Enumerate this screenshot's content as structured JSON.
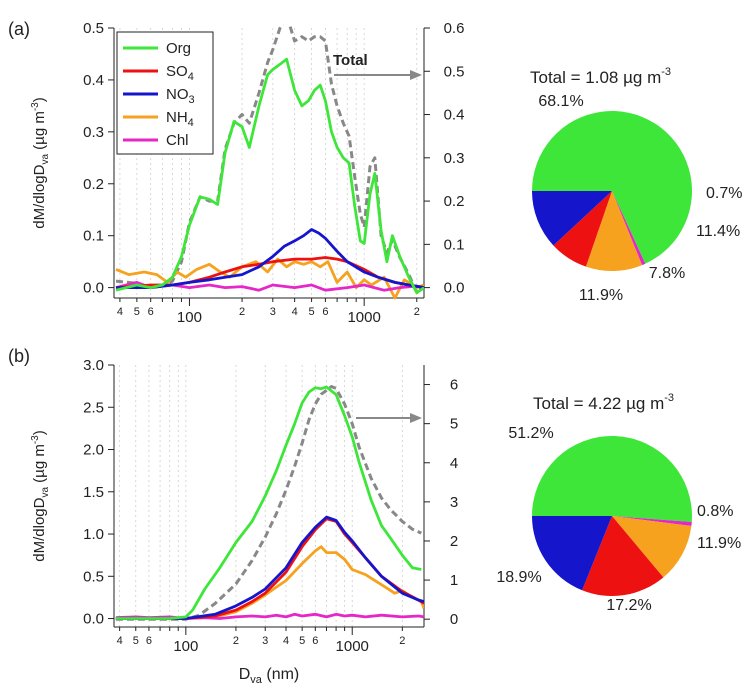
{
  "colors": {
    "Org": "#3ee63a",
    "SO4": "#ee1111",
    "NO3": "#1515cc",
    "NH4": "#f6a21e",
    "Chl": "#e526c8",
    "Total": "#888888",
    "axis": "#222222",
    "grid": "#cfcfcf"
  },
  "chart_data": [
    {
      "panel_label": "(a)",
      "type": "line",
      "xlabel_base": "D",
      "xlabel_sub": "va",
      "xlabel_unit": " (nm)",
      "ylabel": "dM/dlogDva (µg m-3)",
      "x_scale": "log",
      "xlim": [
        37,
        2200
      ],
      "ylim_left": [
        -0.02,
        0.5
      ],
      "ylim_right": [
        -0.024,
        0.6
      ],
      "x_major_ticks": [
        {
          "value": 100,
          "label": "100"
        },
        {
          "value": 1000,
          "label": "1000"
        }
      ],
      "x_minor_ticks": [
        {
          "value": 40,
          "label": "4"
        },
        {
          "value": 50,
          "label": "5"
        },
        {
          "value": 60,
          "label": "6"
        },
        {
          "value": 70,
          "label": ""
        },
        {
          "value": 80,
          "label": ""
        },
        {
          "value": 90,
          "label": ""
        },
        {
          "value": 200,
          "label": "2"
        },
        {
          "value": 300,
          "label": "3"
        },
        {
          "value": 400,
          "label": "4"
        },
        {
          "value": 500,
          "label": "5"
        },
        {
          "value": 600,
          "label": "6"
        },
        {
          "value": 700,
          "label": ""
        },
        {
          "value": 800,
          "label": ""
        },
        {
          "value": 900,
          "label": ""
        },
        {
          "value": 2000,
          "label": "2"
        }
      ],
      "y_left_ticks": [
        {
          "value": 0,
          "label": "0.0"
        },
        {
          "value": 0.1,
          "label": "0.1"
        },
        {
          "value": 0.2,
          "label": "0.2"
        },
        {
          "value": 0.3,
          "label": "0.3"
        },
        {
          "value": 0.4,
          "label": "0.4"
        },
        {
          "value": 0.5,
          "label": "0.5"
        }
      ],
      "y_right_ticks": [
        {
          "value": 0,
          "label": "0.0"
        },
        {
          "value": 0.1,
          "label": "0.1"
        },
        {
          "value": 0.2,
          "label": "0.2"
        },
        {
          "value": 0.3,
          "label": "0.3"
        },
        {
          "value": 0.4,
          "label": "0.4"
        },
        {
          "value": 0.5,
          "label": "0.5"
        },
        {
          "value": 0.6,
          "label": "0.6"
        }
      ],
      "legend": [
        "Org",
        "SO4",
        "NO3",
        "NH4",
        "Chl"
      ],
      "total_annotation": "Total",
      "series": [
        {
          "name": "Org",
          "axis": "left",
          "x": [
            38,
            50,
            60,
            70,
            80,
            90,
            100,
            115,
            130,
            145,
            160,
            180,
            200,
            220,
            250,
            280,
            300,
            330,
            360,
            400,
            440,
            480,
            520,
            560,
            600,
            650,
            700,
            760,
            820,
            880,
            950,
            1000,
            1080,
            1150,
            1250,
            1350,
            1450,
            1600,
            1800,
            2000,
            2200
          ],
          "y": [
            -0.005,
            0.005,
            0.0,
            0.005,
            0.02,
            0.06,
            0.12,
            0.175,
            0.17,
            0.16,
            0.26,
            0.32,
            0.31,
            0.27,
            0.35,
            0.41,
            0.42,
            0.43,
            0.44,
            0.38,
            0.35,
            0.36,
            0.38,
            0.39,
            0.36,
            0.3,
            0.27,
            0.25,
            0.24,
            0.16,
            0.09,
            0.085,
            0.18,
            0.22,
            0.11,
            0.05,
            0.1,
            0.06,
            0.02,
            -0.01,
            0.0
          ]
        },
        {
          "name": "SO4",
          "axis": "left",
          "x": [
            38,
            60,
            80,
            100,
            130,
            160,
            200,
            250,
            300,
            400,
            500,
            600,
            700,
            800,
            1000,
            1200,
            1500,
            1800,
            2200
          ],
          "y": [
            0.0,
            0.005,
            0.005,
            0.01,
            0.02,
            0.03,
            0.04,
            0.045,
            0.05,
            0.055,
            0.055,
            0.058,
            0.055,
            0.05,
            0.035,
            0.02,
            0.01,
            0.005,
            0.0
          ]
        },
        {
          "name": "NO3",
          "axis": "left",
          "x": [
            38,
            60,
            80,
            100,
            130,
            160,
            200,
            250,
            300,
            350,
            400,
            450,
            500,
            550,
            600,
            700,
            800,
            1000,
            1200,
            1500,
            1800,
            2200
          ],
          "y": [
            0.0,
            0.0,
            0.005,
            0.01,
            0.015,
            0.02,
            0.025,
            0.04,
            0.06,
            0.08,
            0.09,
            0.1,
            0.112,
            0.105,
            0.095,
            0.07,
            0.05,
            0.03,
            0.02,
            0.01,
            0.005,
            0.0
          ]
        },
        {
          "name": "NH4",
          "axis": "left",
          "x": [
            38,
            45,
            55,
            65,
            75,
            85,
            95,
            110,
            130,
            150,
            170,
            200,
            240,
            280,
            320,
            360,
            400,
            450,
            500,
            560,
            620,
            700,
            800,
            900,
            1000,
            1100,
            1300,
            1500,
            1700,
            2000,
            2200
          ],
          "y": [
            0.035,
            0.025,
            0.03,
            0.025,
            0.01,
            0.03,
            0.02,
            0.035,
            0.045,
            0.03,
            0.02,
            0.04,
            0.05,
            0.03,
            0.055,
            0.04,
            0.05,
            0.045,
            0.05,
            0.04,
            0.05,
            0.01,
            0.03,
            0.0,
            0.015,
            0.005,
            0.02,
            -0.02,
            0.015,
            0.0,
            0.005
          ]
        },
        {
          "name": "Chl",
          "axis": "left",
          "x": [
            38,
            50,
            60,
            80,
            100,
            130,
            160,
            200,
            250,
            300,
            400,
            500,
            600,
            800,
            1000,
            1300,
            1600,
            2000,
            2200
          ],
          "y": [
            0.0,
            0.01,
            0.0,
            0.005,
            0.0,
            0.005,
            0.0,
            0.002,
            -0.005,
            0.005,
            0.0,
            0.005,
            -0.005,
            0.0,
            0.005,
            -0.005,
            0.0,
            0.003,
            0.0
          ]
        },
        {
          "name": "Total",
          "axis": "right",
          "dashed": true,
          "x": [
            38,
            50,
            60,
            70,
            80,
            90,
            100,
            115,
            130,
            145,
            160,
            180,
            200,
            220,
            250,
            280,
            300,
            330,
            360,
            400,
            440,
            480,
            520,
            560,
            600,
            650,
            700,
            760,
            820,
            880,
            950,
            1000,
            1080,
            1150,
            1250,
            1350,
            1450,
            1600,
            1800,
            2000,
            2200
          ],
          "y": [
            0.015,
            0.01,
            0.0,
            0.005,
            0.015,
            0.06,
            0.15,
            0.21,
            0.2,
            0.2,
            0.32,
            0.38,
            0.4,
            0.38,
            0.45,
            0.52,
            0.55,
            0.6,
            0.63,
            0.57,
            0.58,
            0.57,
            0.58,
            0.58,
            0.57,
            0.47,
            0.42,
            0.38,
            0.35,
            0.26,
            0.17,
            0.14,
            0.28,
            0.3,
            0.12,
            0.08,
            0.11,
            0.07,
            0.03,
            -0.01,
            0.0
          ]
        }
      ],
      "pie": {
        "title_prefix": "Total = 1.08 µg m",
        "title_sup": "-3",
        "slices": [
          {
            "name": "Org",
            "value": 68.1,
            "label": "68.1%"
          },
          {
            "name": "Chl",
            "value": 0.7,
            "label": "0.7%"
          },
          {
            "name": "NH4",
            "value": 11.4,
            "label": "11.4%"
          },
          {
            "name": "SO4",
            "value": 7.8,
            "label": "7.8%"
          },
          {
            "name": "NO3",
            "value": 11.9,
            "label": "11.9%"
          }
        ]
      }
    },
    {
      "panel_label": "(b)",
      "type": "line",
      "xlabel_base": "D",
      "xlabel_sub": "va",
      "xlabel_unit": " (nm)",
      "ylabel": "dM/dlogDva (µg m-3)",
      "x_scale": "log",
      "xlim": [
        37,
        2700
      ],
      "ylim_left": [
        -0.1,
        3.0
      ],
      "ylim_right": [
        -0.2,
        6.5
      ],
      "x_major_ticks": [
        {
          "value": 100,
          "label": "100"
        },
        {
          "value": 1000,
          "label": "1000"
        }
      ],
      "x_minor_ticks": [
        {
          "value": 40,
          "label": "4"
        },
        {
          "value": 50,
          "label": "5"
        },
        {
          "value": 60,
          "label": "6"
        },
        {
          "value": 70,
          "label": ""
        },
        {
          "value": 80,
          "label": ""
        },
        {
          "value": 90,
          "label": ""
        },
        {
          "value": 200,
          "label": "2"
        },
        {
          "value": 300,
          "label": "3"
        },
        {
          "value": 400,
          "label": "4"
        },
        {
          "value": 500,
          "label": "5"
        },
        {
          "value": 600,
          "label": "6"
        },
        {
          "value": 700,
          "label": ""
        },
        {
          "value": 800,
          "label": ""
        },
        {
          "value": 900,
          "label": ""
        },
        {
          "value": 2000,
          "label": "2"
        }
      ],
      "y_left_ticks": [
        {
          "value": 0,
          "label": "0.0"
        },
        {
          "value": 0.5,
          "label": "0.5"
        },
        {
          "value": 1.0,
          "label": "1.0"
        },
        {
          "value": 1.5,
          "label": "1.5"
        },
        {
          "value": 2.0,
          "label": "2.0"
        },
        {
          "value": 2.5,
          "label": "2.5"
        },
        {
          "value": 3.0,
          "label": "3.0"
        }
      ],
      "y_right_ticks": [
        {
          "value": 0,
          "label": "0"
        },
        {
          "value": 1,
          "label": "1"
        },
        {
          "value": 2,
          "label": "2"
        },
        {
          "value": 3,
          "label": "3"
        },
        {
          "value": 4,
          "label": "4"
        },
        {
          "value": 5,
          "label": "5"
        },
        {
          "value": 6,
          "label": "6"
        }
      ],
      "legend": [],
      "total_annotation": "",
      "series": [
        {
          "name": "Org",
          "axis": "left",
          "x": [
            38,
            60,
            80,
            100,
            110,
            130,
            160,
            200,
            250,
            300,
            350,
            400,
            450,
            500,
            550,
            600,
            650,
            700,
            800,
            900,
            1000,
            1100,
            1300,
            1500,
            1700,
            2000,
            2300,
            2600
          ],
          "y": [
            0.0,
            0.0,
            0.0,
            0.02,
            0.1,
            0.35,
            0.6,
            0.9,
            1.15,
            1.45,
            1.75,
            2.05,
            2.3,
            2.55,
            2.68,
            2.73,
            2.72,
            2.74,
            2.65,
            2.4,
            2.15,
            1.85,
            1.4,
            1.1,
            0.95,
            0.75,
            0.6,
            0.58
          ]
        },
        {
          "name": "SO4",
          "axis": "left",
          "x": [
            38,
            100,
            150,
            200,
            250,
            300,
            400,
            500,
            600,
            700,
            800,
            900,
            1000,
            1200,
            1500,
            2000,
            2500,
            2700
          ],
          "y": [
            0.0,
            0.0,
            0.03,
            0.1,
            0.2,
            0.3,
            0.55,
            0.85,
            1.05,
            1.18,
            1.15,
            1.0,
            0.9,
            0.72,
            0.5,
            0.32,
            0.22,
            0.18
          ]
        },
        {
          "name": "NO3",
          "axis": "left",
          "x": [
            38,
            100,
            150,
            200,
            250,
            300,
            400,
            500,
            600,
            700,
            800,
            900,
            1000,
            1200,
            1500,
            2000,
            2500,
            2700
          ],
          "y": [
            0.0,
            0.0,
            0.05,
            0.15,
            0.25,
            0.35,
            0.6,
            0.9,
            1.08,
            1.2,
            1.16,
            1.02,
            0.92,
            0.72,
            0.5,
            0.3,
            0.22,
            0.2
          ]
        },
        {
          "name": "NH4",
          "axis": "left",
          "x": [
            38,
            100,
            150,
            200,
            250,
            300,
            400,
            500,
            600,
            650,
            700,
            800,
            900,
            1000,
            1200,
            1500,
            1800,
            2000,
            2300,
            2600,
            2700
          ],
          "y": [
            0.0,
            0.0,
            0.02,
            0.08,
            0.18,
            0.28,
            0.45,
            0.65,
            0.8,
            0.85,
            0.78,
            0.78,
            0.7,
            0.58,
            0.52,
            0.4,
            0.3,
            0.33,
            0.25,
            0.2,
            0.12
          ]
        },
        {
          "name": "Chl",
          "axis": "left",
          "x": [
            38,
            50,
            60,
            80,
            100,
            130,
            160,
            200,
            250,
            300,
            350,
            400,
            450,
            500,
            600,
            700,
            800,
            900,
            1000,
            1200,
            1500,
            2000,
            2500,
            2700
          ],
          "y": [
            0.01,
            0.02,
            0.01,
            0.02,
            0.0,
            0.01,
            0.0,
            0.02,
            0.03,
            0.02,
            0.04,
            0.02,
            0.05,
            0.03,
            0.05,
            0.02,
            0.05,
            0.03,
            0.04,
            0.02,
            0.04,
            0.02,
            0.03,
            0.02
          ]
        },
        {
          "name": "Total",
          "axis": "right",
          "dashed": true,
          "x": [
            38,
            100,
            120,
            150,
            200,
            250,
            300,
            350,
            400,
            450,
            500,
            550,
            600,
            650,
            700,
            750,
            800,
            900,
            1000,
            1100,
            1300,
            1500,
            1700,
            2000,
            2300,
            2600
          ],
          "y": [
            0.0,
            0.0,
            0.1,
            0.4,
            0.9,
            1.5,
            2.1,
            2.7,
            3.3,
            3.9,
            4.5,
            5.1,
            5.5,
            5.75,
            5.85,
            5.95,
            5.9,
            5.5,
            5.0,
            4.4,
            3.6,
            3.1,
            2.8,
            2.5,
            2.3,
            2.2
          ]
        }
      ],
      "pie": {
        "title_prefix": "Total = 4.22 µg m",
        "title_sup": "-3",
        "slices": [
          {
            "name": "Org",
            "value": 51.2,
            "label": "51.2%"
          },
          {
            "name": "Chl",
            "value": 0.8,
            "label": "0.8%"
          },
          {
            "name": "NH4",
            "value": 11.9,
            "label": "11.9%"
          },
          {
            "name": "SO4",
            "value": 17.2,
            "label": "17.2%"
          },
          {
            "name": "NO3",
            "value": 18.9,
            "label": "18.9%"
          }
        ]
      }
    }
  ]
}
